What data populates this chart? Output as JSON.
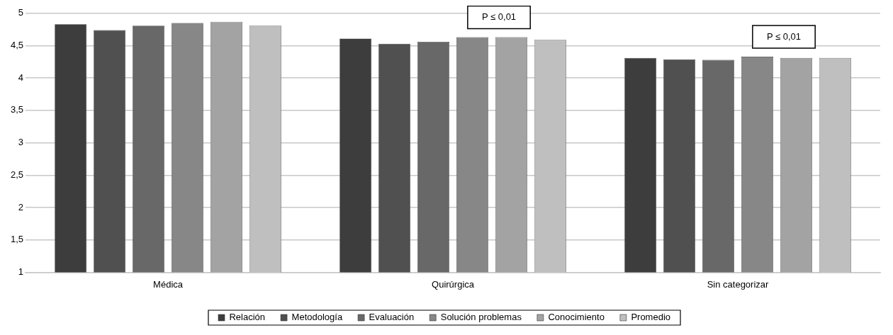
{
  "chart_data": {
    "type": "bar",
    "categories": [
      "Médica",
      "Quirúrgica",
      "Sin categorizar"
    ],
    "series": [
      {
        "name": "Relación",
        "color": "#3d3d3d",
        "values": [
          4.83,
          4.61,
          4.31
        ]
      },
      {
        "name": "Metodología",
        "color": "#505050",
        "values": [
          4.74,
          4.53,
          4.29
        ]
      },
      {
        "name": "Evaluación",
        "color": "#686868",
        "values": [
          4.81,
          4.56,
          4.28
        ]
      },
      {
        "name": "Solución problemas",
        "color": "#878787",
        "values": [
          4.85,
          4.63,
          4.33
        ]
      },
      {
        "name": "Conocimiento",
        "color": "#a3a3a3",
        "values": [
          4.87,
          4.63,
          4.31
        ]
      },
      {
        "name": "Promedio",
        "color": "#bfbfbf",
        "values": [
          4.81,
          4.59,
          4.31
        ]
      }
    ],
    "ylim": [
      1,
      5
    ],
    "yticks": [
      1,
      {
        "value": 1.5,
        "label": "1,5"
      },
      2,
      {
        "value": 2.5,
        "label": "2,5"
      },
      3,
      {
        "value": 3.5,
        "label": "3,5"
      },
      4,
      {
        "value": 4.5,
        "label": "4,5"
      },
      5
    ],
    "grid": "y",
    "legend": "bottom",
    "annotations": [
      "P ≤ 0,01",
      "P ≤ 0,01"
    ]
  }
}
